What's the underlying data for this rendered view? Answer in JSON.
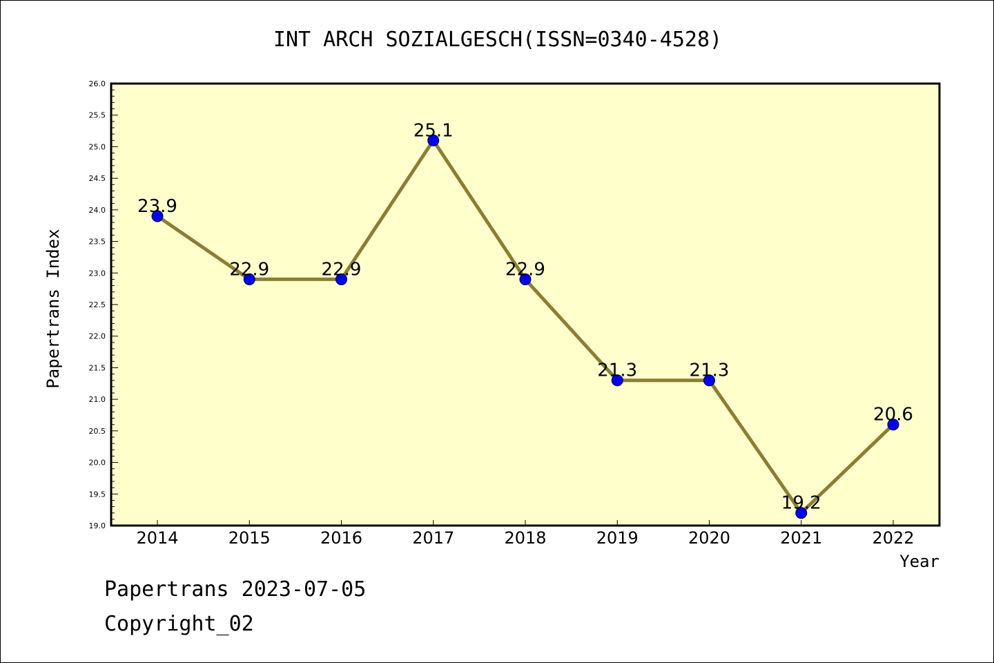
{
  "chart_data": {
    "type": "line",
    "title": "INT ARCH SOZIALGESCH(ISSN=0340-4528)",
    "xlabel": "Year",
    "ylabel": "Papertrans Index",
    "categories": [
      "2014",
      "2015",
      "2016",
      "2017",
      "2018",
      "2019",
      "2020",
      "2021",
      "2022"
    ],
    "series": [
      {
        "values": [
          23.9,
          22.9,
          22.9,
          25.1,
          22.9,
          21.3,
          21.3,
          19.2,
          20.6
        ]
      }
    ],
    "data_labels": [
      "23.9",
      "22.9",
      "22.9",
      "25.1",
      "22.9",
      "21.3",
      "21.3",
      "19.2",
      "20.6"
    ],
    "ylim": [
      19.0,
      26.0
    ],
    "yticks": [
      "19.0",
      "19.5",
      "20.0",
      "20.5",
      "21.0",
      "21.5",
      "22.0",
      "22.5",
      "23.0",
      "23.5",
      "24.0",
      "24.5",
      "25.0",
      "25.5",
      "26.0"
    ],
    "grid": false,
    "colors": {
      "plot_background": "#ffffcc",
      "line": "#8b7d32",
      "marker": "#0000ff"
    }
  },
  "footer": {
    "line1": "Papertrans 2023-07-05",
    "line2": "Copyright_02"
  }
}
